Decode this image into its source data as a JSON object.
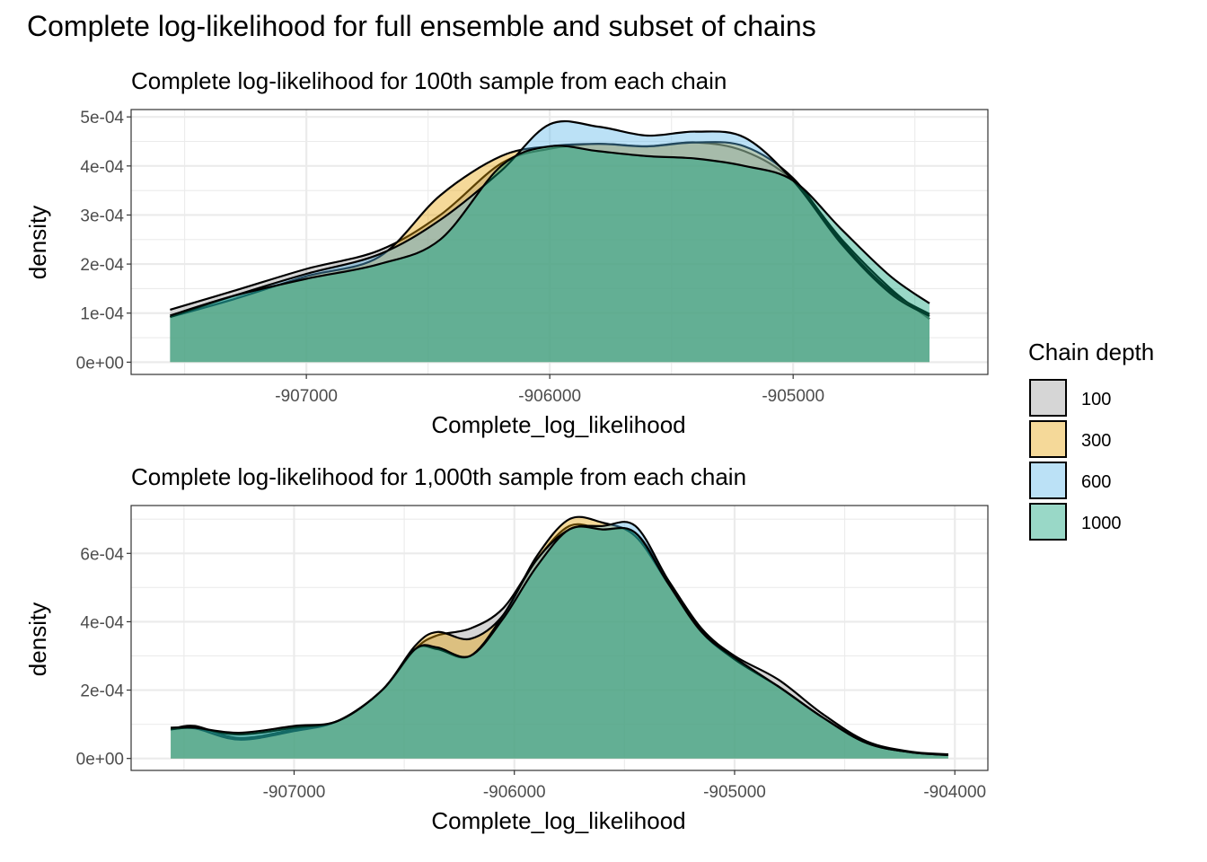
{
  "title": "Complete log-likelihood for full ensemble and subset of chains",
  "legend": {
    "title": "Chain depth",
    "position": "right",
    "entries": [
      {
        "label": "100",
        "color": "#999999"
      },
      {
        "label": "300",
        "color": "#E69F00"
      },
      {
        "label": "600",
        "color": "#56B4E9"
      },
      {
        "label": "1000",
        "color": "#009E73"
      }
    ]
  },
  "chart_data": [
    {
      "type": "area",
      "subtitle": "Complete log-likelihood for 100th sample from each chain",
      "xlabel": "Complete_log_likelihood",
      "ylabel": "density",
      "xlim": [
        -907720,
        -904200
      ],
      "ylim": [
        -2.5e-05,
        0.000515
      ],
      "xticks": [
        -907000,
        -906000,
        -905000
      ],
      "xtick_labels": [
        "-907000",
        "-906000",
        "-905000"
      ],
      "yticks": [
        0,
        0.0001,
        0.0002,
        0.0003,
        0.0004,
        0.0005
      ],
      "ytick_labels": [
        "0e+00",
        "1e-04",
        "2e-04",
        "3e-04",
        "4e-04",
        "5e-04"
      ],
      "grid": true,
      "series": [
        {
          "name": "100",
          "color": "#999999",
          "x": [
            -907560,
            -907300,
            -907000,
            -906700,
            -906450,
            -906200,
            -906000,
            -905800,
            -905600,
            -905400,
            -905200,
            -905000,
            -904800,
            -904600,
            -904440
          ],
          "y": [
            0.000107,
            0.000145,
            0.00019,
            0.000228,
            0.0003,
            0.000405,
            0.000435,
            0.000445,
            0.00044,
            0.000448,
            0.00043,
            0.00037,
            0.00025,
            0.00015,
            8.8e-05
          ]
        },
        {
          "name": "300",
          "color": "#E69F00",
          "x": [
            -907560,
            -907300,
            -907000,
            -906700,
            -906450,
            -906200,
            -906000,
            -905800,
            -905600,
            -905400,
            -905200,
            -905000,
            -904800,
            -904600,
            -904440
          ],
          "y": [
            9.2e-05,
            0.000128,
            0.000175,
            0.000215,
            0.00034,
            0.00042,
            0.00044,
            0.000445,
            0.00044,
            0.000448,
            0.00044,
            0.000375,
            0.000245,
            0.000145,
            9.8e-05
          ]
        },
        {
          "name": "600",
          "color": "#56B4E9",
          "x": [
            -907560,
            -907300,
            -907000,
            -906700,
            -906450,
            -906200,
            -906000,
            -905800,
            -905600,
            -905400,
            -905200,
            -905000,
            -904800,
            -904600,
            -904440
          ],
          "y": [
            9.2e-05,
            0.000135,
            0.00018,
            0.00022,
            0.00029,
            0.00039,
            0.000485,
            0.00048,
            0.000462,
            0.00047,
            0.000458,
            0.00037,
            0.00024,
            0.00014,
            9.4e-05
          ]
        },
        {
          "name": "1000",
          "color": "#009E73",
          "x": [
            -907560,
            -907300,
            -907000,
            -906700,
            -906450,
            -906200,
            -906000,
            -905800,
            -905600,
            -905400,
            -905200,
            -905000,
            -904800,
            -904600,
            -904440
          ],
          "y": [
            9.5e-05,
            0.000135,
            0.00017,
            0.0002,
            0.00025,
            0.0004,
            0.00044,
            0.00043,
            0.00042,
            0.000415,
            0.0004,
            0.00037,
            0.00027,
            0.000175,
            0.00012
          ]
        }
      ]
    },
    {
      "type": "area",
      "subtitle": "Complete log-likelihood for 1,000th sample from each chain",
      "xlabel": "Complete_log_likelihood",
      "ylabel": "density",
      "xlim": [
        -907740,
        -903850
      ],
      "ylim": [
        -3.5e-05,
        0.00074
      ],
      "xticks": [
        -907000,
        -906000,
        -905000,
        -904000
      ],
      "xtick_labels": [
        "-907000",
        "-906000",
        "-905000",
        "-904000"
      ],
      "yticks": [
        0,
        0.0002,
        0.0004,
        0.0006
      ],
      "ytick_labels": [
        "0e+00",
        "2e-04",
        "4e-04",
        "6e-04"
      ],
      "grid": true,
      "series": [
        {
          "name": "100",
          "color": "#999999",
          "x": [
            -907560,
            -907450,
            -907250,
            -907000,
            -906800,
            -906600,
            -906450,
            -906350,
            -906200,
            -906050,
            -905900,
            -905750,
            -905600,
            -905450,
            -905300,
            -905150,
            -905000,
            -904800,
            -904600,
            -904400,
            -904200,
            -904030
          ],
          "y": [
            8.5e-05,
            9.5e-05,
            6e-05,
            8.5e-05,
            0.00011,
            0.0002,
            0.00032,
            0.00036,
            0.00038,
            0.00044,
            0.00058,
            0.00068,
            0.00067,
            0.00066,
            0.00052,
            0.00038,
            0.0003,
            0.00023,
            0.00013,
            5e-05,
            2e-05,
            1.2e-05
          ]
        },
        {
          "name": "300",
          "color": "#E69F00",
          "x": [
            -907560,
            -907450,
            -907250,
            -907000,
            -906800,
            -906600,
            -906450,
            -906350,
            -906200,
            -906050,
            -905900,
            -905750,
            -905600,
            -905450,
            -905300,
            -905150,
            -905000,
            -904800,
            -904600,
            -904400,
            -904200,
            -904030
          ],
          "y": [
            8.5e-05,
            8.8e-05,
            5.5e-05,
            8e-05,
            0.00011,
            0.0002,
            0.00033,
            0.00037,
            0.00035,
            0.00042,
            0.00059,
            0.0007,
            0.00069,
            0.00065,
            0.00051,
            0.00037,
            0.00029,
            0.00021,
            0.00012,
            4.5e-05,
            1.8e-05,
            1e-05
          ]
        },
        {
          "name": "600",
          "color": "#56B4E9",
          "x": [
            -907560,
            -907450,
            -907250,
            -907000,
            -906800,
            -906600,
            -906450,
            -906350,
            -906200,
            -906050,
            -905900,
            -905750,
            -905600,
            -905450,
            -905300,
            -905150,
            -905000,
            -904800,
            -904600,
            -904400,
            -904200,
            -904030
          ],
          "y": [
            8.5e-05,
            9e-05,
            7e-05,
            9e-05,
            0.00011,
            0.0002,
            0.00032,
            0.00032,
            0.0003,
            0.00042,
            0.00058,
            0.00067,
            0.00068,
            0.00068,
            0.00052,
            0.000375,
            0.00029,
            0.00021,
            0.00012,
            4.5e-05,
            1.8e-05,
            1e-05
          ]
        },
        {
          "name": "1000",
          "color": "#009E73",
          "x": [
            -907560,
            -907450,
            -907250,
            -907000,
            -906800,
            -906600,
            -906450,
            -906350,
            -906200,
            -906050,
            -905900,
            -905750,
            -905600,
            -905450,
            -905300,
            -905150,
            -905000,
            -904800,
            -904600,
            -904400,
            -904200,
            -904030
          ],
          "y": [
            9e-05,
            9e-05,
            7.5e-05,
            9.5e-05,
            0.00011,
            0.0002,
            0.00032,
            0.000325,
            0.0003,
            0.00041,
            0.00056,
            0.00067,
            0.00067,
            0.00066,
            0.00051,
            0.00037,
            0.000295,
            0.00021,
            0.00012,
            4.5e-05,
            1.8e-05,
            1e-05
          ]
        }
      ]
    }
  ]
}
